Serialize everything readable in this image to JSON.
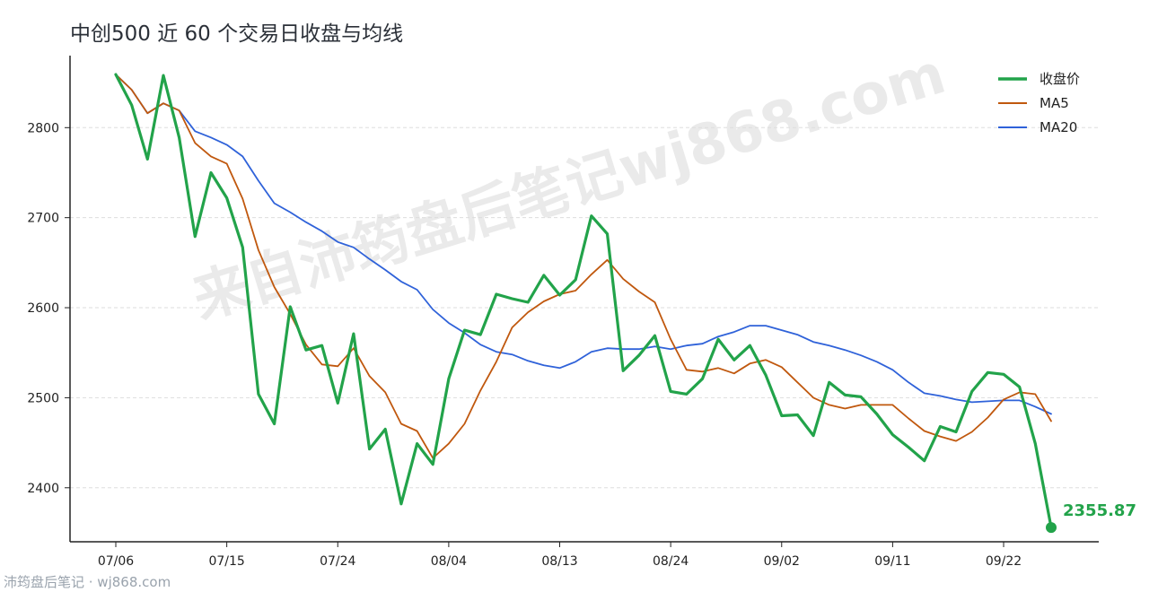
{
  "title": "中创500 近 60 个交易日收盘与均线",
  "watermark": "来自沛筠盘后笔记wj868.com",
  "footer": "沛筠盘后笔记 · wj868.com",
  "colors": {
    "close": "#22a34a",
    "ma5": "#c0580e",
    "ma20": "#2f62d9",
    "axis": "#222222",
    "grid": "#dddddd",
    "watermark": "#d9d9d9"
  },
  "chart_data": {
    "type": "line",
    "title": "中创500 近 60 个交易日收盘与均线",
    "ylim": [
      2340,
      2880
    ],
    "yticks": [
      2400,
      2500,
      2600,
      2700,
      2800
    ],
    "grid": true,
    "legend_position": "top-right",
    "xticks": [
      {
        "index": 0,
        "label": "07/06"
      },
      {
        "index": 7,
        "label": "07/15"
      },
      {
        "index": 14,
        "label": "07/24"
      },
      {
        "index": 21,
        "label": "08/04"
      },
      {
        "index": 28,
        "label": "08/13"
      },
      {
        "index": 35,
        "label": "08/24"
      },
      {
        "index": 42,
        "label": "09/02"
      },
      {
        "index": 49,
        "label": "09/11"
      },
      {
        "index": 56,
        "label": "09/22"
      }
    ],
    "series": [
      {
        "name": "收盘价",
        "values": [
          2859,
          2825,
          2765,
          2858,
          2789,
          2679,
          2750,
          2722,
          2667,
          2504,
          2471,
          2601,
          2553,
          2558,
          2494,
          2571,
          2443,
          2465,
          2382,
          2449,
          2426,
          2521,
          2575,
          2570,
          2615,
          2610,
          2606,
          2636,
          2614,
          2631,
          2702,
          2682,
          2530,
          2547,
          2569,
          2507,
          2504,
          2521,
          2565,
          2542,
          2558,
          2525,
          2480,
          2481,
          2458,
          2517,
          2503,
          2501,
          2482,
          2459,
          2445,
          2430,
          2468,
          2462,
          2507,
          2528,
          2526,
          2512,
          2449,
          2355.87
        ]
      },
      {
        "name": "MA5",
        "values": [
          2859,
          2842,
          2816,
          2827,
          2819,
          2783,
          2768,
          2760,
          2721,
          2664,
          2623,
          2593,
          2559,
          2537,
          2535,
          2555,
          2524,
          2506,
          2471,
          2463,
          2433,
          2449,
          2471,
          2508,
          2540,
          2578,
          2595,
          2607,
          2615,
          2619,
          2637,
          2653,
          2632,
          2618,
          2606,
          2565,
          2531,
          2529,
          2533,
          2527,
          2538,
          2542,
          2534,
          2517,
          2500,
          2492,
          2488,
          2492,
          2492,
          2492,
          2477,
          2463,
          2457,
          2452,
          2462,
          2478,
          2498,
          2506,
          2504,
          2474
        ]
      },
      {
        "name": "MA20",
        "values": [
          2859,
          2842,
          2816,
          2827,
          2819,
          2796,
          2789,
          2781,
          2768,
          2741,
          2716,
          2706,
          2695,
          2685,
          2673,
          2667,
          2654,
          2642,
          2629,
          2620,
          2598,
          2583,
          2572,
          2559,
          2551,
          2548,
          2541,
          2536,
          2533,
          2540,
          2551,
          2555,
          2554,
          2554,
          2557,
          2554,
          2558,
          2560,
          2568,
          2573,
          2580,
          2580,
          2575,
          2570,
          2562,
          2558,
          2553,
          2547,
          2540,
          2531,
          2517,
          2505,
          2502,
          2498,
          2495,
          2496,
          2497,
          2497,
          2490,
          2482
        ]
      }
    ],
    "last_value_label": "2355.87"
  }
}
